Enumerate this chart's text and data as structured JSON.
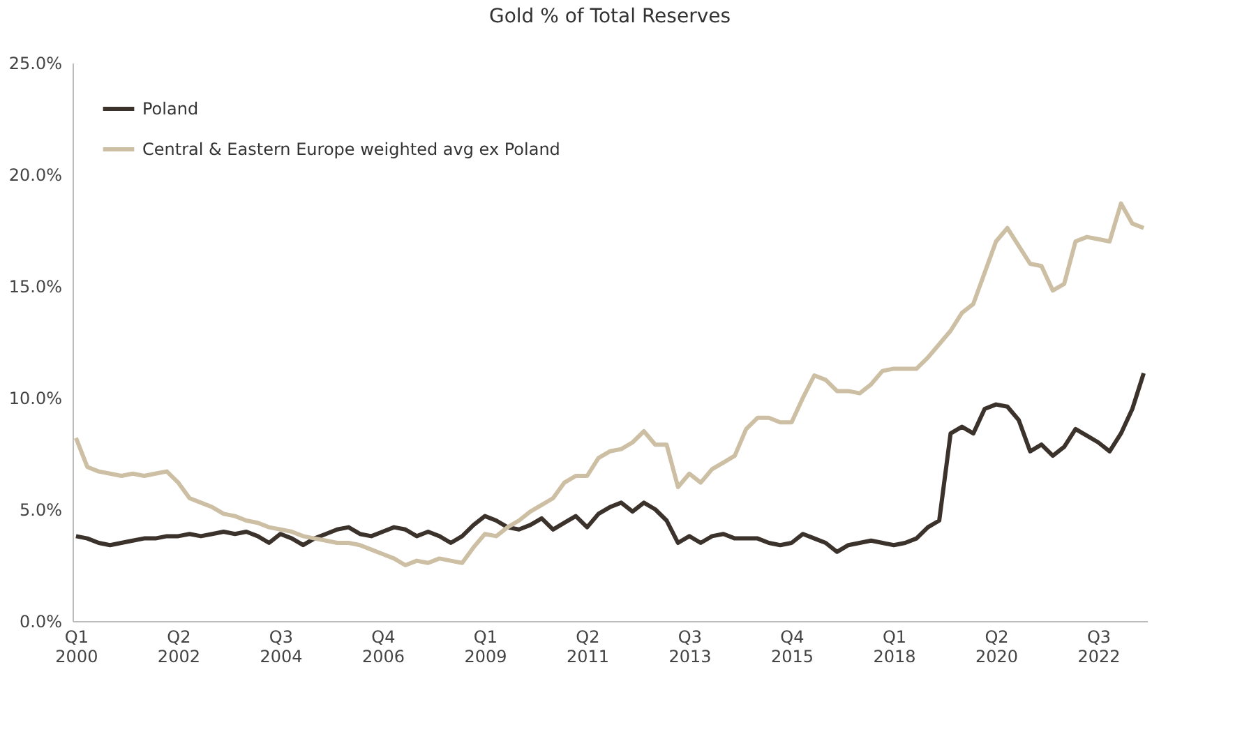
{
  "chart_data": {
    "type": "line",
    "title": "Gold % of Total Reserves",
    "categories": [
      "Q1 2000",
      null,
      null,
      null,
      null,
      null,
      null,
      null,
      null,
      "Q2 2002",
      null,
      null,
      null,
      null,
      null,
      null,
      null,
      null,
      "Q3 2004",
      null,
      null,
      null,
      null,
      null,
      null,
      null,
      null,
      "Q4 2006",
      null,
      null,
      null,
      null,
      null,
      null,
      null,
      null,
      "Q1 2009",
      null,
      null,
      null,
      null,
      null,
      null,
      null,
      null,
      "Q2 2011",
      null,
      null,
      null,
      null,
      null,
      null,
      null,
      null,
      "Q3 2013",
      null,
      null,
      null,
      null,
      null,
      null,
      null,
      null,
      "Q4 2015",
      null,
      null,
      null,
      null,
      null,
      null,
      null,
      null,
      "Q1 2018",
      null,
      null,
      null,
      null,
      null,
      null,
      null,
      null,
      "Q2 2020",
      null,
      null,
      null,
      null,
      null,
      null,
      null,
      null,
      "Q3 2022",
      null,
      null,
      null,
      null
    ],
    "series": [
      {
        "name": "Poland",
        "color": "#3b322c",
        "values": [
          3.8,
          3.7,
          3.5,
          3.4,
          3.5,
          3.6,
          3.7,
          3.7,
          3.8,
          3.8,
          3.9,
          3.8,
          3.9,
          4.0,
          3.9,
          4.0,
          3.8,
          3.5,
          3.9,
          3.7,
          3.4,
          3.7,
          3.9,
          4.1,
          4.2,
          3.9,
          3.8,
          4.0,
          4.2,
          4.1,
          3.8,
          4.0,
          3.8,
          3.5,
          3.8,
          4.3,
          4.7,
          4.5,
          4.2,
          4.1,
          4.3,
          4.6,
          4.1,
          4.4,
          4.7,
          4.2,
          4.8,
          5.1,
          5.3,
          4.9,
          5.3,
          5.0,
          4.5,
          3.5,
          3.8,
          3.5,
          3.8,
          3.9,
          3.7,
          3.7,
          3.7,
          3.5,
          3.4,
          3.5,
          3.9,
          3.7,
          3.5,
          3.1,
          3.4,
          3.5,
          3.6,
          3.5,
          3.4,
          3.5,
          3.7,
          4.2,
          4.5,
          8.4,
          8.7,
          8.4,
          9.5,
          9.7,
          9.6,
          9.0,
          7.6,
          7.9,
          7.4,
          7.8,
          8.6,
          8.3,
          8.0,
          7.6,
          8.4,
          9.5,
          11.1
        ]
      },
      {
        "name": "Central & Eastern Europe weighted avg ex Poland",
        "color": "#cdbfa3",
        "values": [
          8.2,
          6.9,
          6.7,
          6.6,
          6.5,
          6.6,
          6.5,
          6.6,
          6.7,
          6.2,
          5.5,
          5.3,
          5.1,
          4.8,
          4.7,
          4.5,
          4.4,
          4.2,
          4.1,
          4.0,
          3.8,
          3.7,
          3.6,
          3.5,
          3.5,
          3.4,
          3.2,
          3.0,
          2.8,
          2.5,
          2.7,
          2.6,
          2.8,
          2.7,
          2.6,
          3.3,
          3.9,
          3.8,
          4.2,
          4.5,
          4.9,
          5.2,
          5.5,
          6.2,
          6.5,
          6.5,
          7.3,
          7.6,
          7.7,
          8.0,
          8.5,
          7.9,
          7.9,
          6.0,
          6.6,
          6.2,
          6.8,
          7.1,
          7.4,
          8.6,
          9.1,
          9.1,
          8.9,
          8.9,
          10.0,
          11.0,
          10.8,
          10.3,
          10.3,
          10.2,
          10.6,
          11.2,
          11.3,
          11.3,
          11.3,
          11.8,
          12.4,
          13.0,
          13.8,
          14.2,
          15.6,
          17.0,
          17.6,
          16.8,
          16.0,
          15.9,
          14.8,
          15.1,
          17.0,
          17.2,
          17.1,
          17.0,
          18.7,
          17.8,
          17.6
        ]
      }
    ],
    "ylim": [
      0,
      25
    ],
    "yticks": [
      {
        "value": 0,
        "label": "0.0%"
      },
      {
        "value": 5,
        "label": "5.0%"
      },
      {
        "value": 10,
        "label": "10.0%"
      },
      {
        "value": 15,
        "label": "15.0%"
      },
      {
        "value": 20,
        "label": "20.0%"
      },
      {
        "value": 25,
        "label": "25.0%"
      }
    ],
    "grid": false,
    "legend": "top left",
    "marker": "none",
    "line_style": "solid"
  }
}
